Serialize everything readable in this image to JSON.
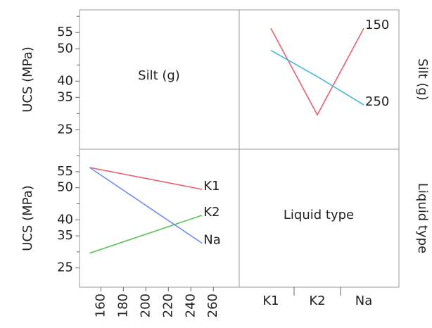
{
  "chart_data": [
    {
      "type": "line",
      "y_label": "UCS (MPa)",
      "legend_title": "Silt (g)",
      "categories": [
        "K1",
        "K2",
        "Na"
      ],
      "series": [
        {
          "name": "150",
          "color": "#e5606e",
          "values": [
            56.3,
            29.6,
            56.3
          ]
        },
        {
          "name": "250",
          "color": "#45b8d8",
          "values": [
            49.5,
            41.4,
            32.7
          ]
        }
      ],
      "ylim": [
        19,
        62
      ],
      "yticks": [
        25,
        35,
        40,
        50,
        55
      ],
      "yminor_ticks": [
        30,
        45,
        60
      ]
    },
    {
      "type": "line",
      "y_label": "UCS (MPa)",
      "legend_title": "Liquid type",
      "x": [
        150,
        250
      ],
      "series": [
        {
          "name": "K1",
          "color": "#e5606e",
          "values": [
            56.3,
            49.5
          ]
        },
        {
          "name": "K2",
          "color": "#5cc45c",
          "values": [
            29.6,
            41.4
          ]
        },
        {
          "name": "Na",
          "color": "#6f8ff0",
          "values": [
            56.3,
            32.7
          ]
        }
      ],
      "xlim": [
        141,
        283
      ],
      "xticks": [
        160,
        180,
        200,
        220,
        240,
        260
      ],
      "ylim": [
        19,
        62
      ],
      "yticks": [
        25,
        35,
        40,
        50,
        55
      ],
      "yminor_ticks": [
        30,
        45,
        60
      ]
    }
  ],
  "diagonal_labels": [
    "Silt (g)",
    "Liquid type"
  ]
}
